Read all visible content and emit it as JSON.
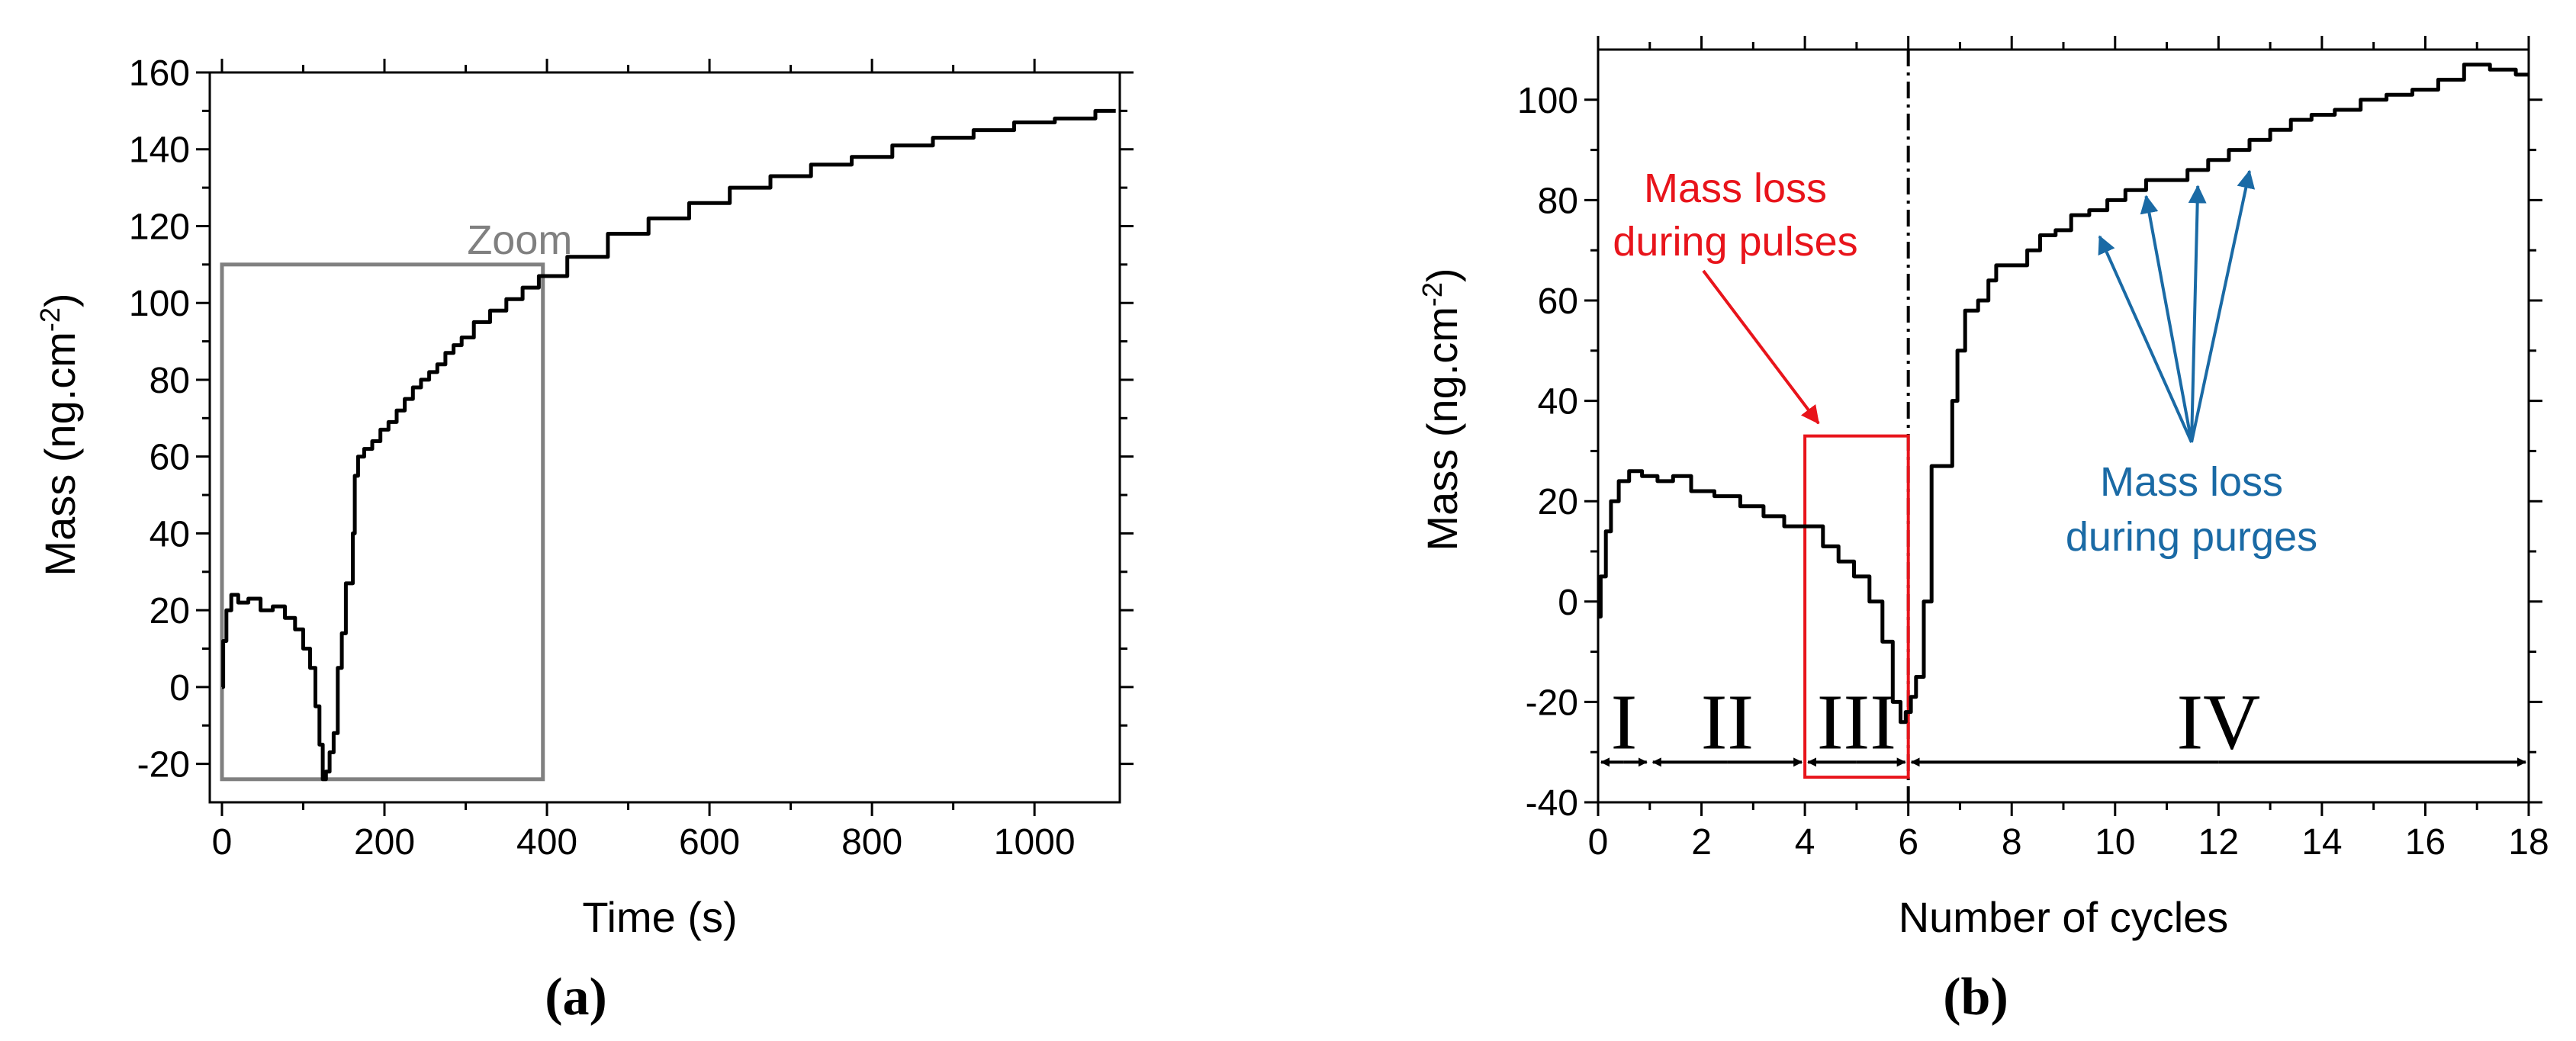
{
  "chart_data": [
    {
      "id": "a",
      "type": "line",
      "panel_label": "(a)",
      "xlabel": "Time (s)",
      "ylabel_main": "Mass (ng.cm",
      "ylabel_sup": "-2",
      "ylabel_close": ")",
      "xlim": [
        -15,
        1105
      ],
      "ylim": [
        -30,
        160
      ],
      "xticks": [
        0,
        200,
        400,
        600,
        800,
        1000
      ],
      "yticks": [
        -20,
        0,
        20,
        40,
        60,
        80,
        100,
        120,
        140,
        160
      ],
      "zoom_label": "Zoom",
      "zoom_box": {
        "x0": 0,
        "x1": 395,
        "y0": -24,
        "y1": 110
      },
      "series": [
        {
          "name": "mass",
          "points": [
            [
              0,
              0
            ],
            [
              3,
              12
            ],
            [
              8,
              20
            ],
            [
              15,
              24
            ],
            [
              25,
              22
            ],
            [
              40,
              23
            ],
            [
              55,
              20
            ],
            [
              70,
              21
            ],
            [
              85,
              18
            ],
            [
              95,
              15
            ],
            [
              105,
              10
            ],
            [
              112,
              5
            ],
            [
              118,
              -5
            ],
            [
              122,
              -15
            ],
            [
              126,
              -24
            ],
            [
              130,
              -22
            ],
            [
              135,
              -17
            ],
            [
              140,
              -12
            ],
            [
              145,
              5
            ],
            [
              150,
              14
            ],
            [
              155,
              27
            ],
            [
              160,
              27
            ],
            [
              162,
              40
            ],
            [
              165,
              55
            ],
            [
              170,
              60
            ],
            [
              180,
              62
            ],
            [
              190,
              64
            ],
            [
              200,
              67
            ],
            [
              210,
              69
            ],
            [
              220,
              72
            ],
            [
              230,
              75
            ],
            [
              240,
              78
            ],
            [
              250,
              80
            ],
            [
              260,
              82
            ],
            [
              270,
              84
            ],
            [
              280,
              87
            ],
            [
              290,
              89
            ],
            [
              300,
              91
            ],
            [
              320,
              95
            ],
            [
              340,
              98
            ],
            [
              360,
              101
            ],
            [
              380,
              104
            ],
            [
              400,
              107
            ],
            [
              450,
              112
            ],
            [
              500,
              118
            ],
            [
              550,
              122
            ],
            [
              600,
              126
            ],
            [
              650,
              130
            ],
            [
              700,
              133
            ],
            [
              750,
              136
            ],
            [
              800,
              138
            ],
            [
              850,
              141
            ],
            [
              900,
              143
            ],
            [
              950,
              145
            ],
            [
              1000,
              147
            ],
            [
              1050,
              148
            ],
            [
              1100,
              150
            ]
          ]
        }
      ]
    },
    {
      "id": "b",
      "type": "line",
      "panel_label": "(b)",
      "xlabel": "Number of cycles",
      "ylabel_main": "Mass (ng.cm",
      "ylabel_sup": "-2",
      "ylabel_close": ")",
      "xlim": [
        0,
        18
      ],
      "ylim": [
        -40,
        110
      ],
      "xticks": [
        0,
        2,
        4,
        6,
        8,
        10,
        12,
        14,
        16,
        18
      ],
      "yticks": [
        -40,
        -20,
        0,
        20,
        40,
        60,
        80,
        100
      ],
      "divider_x": 6,
      "phases": [
        {
          "label": "I",
          "from": 0,
          "to": 1
        },
        {
          "label": "II",
          "from": 1,
          "to": 4
        },
        {
          "label": "III",
          "from": 4,
          "to": 6
        },
        {
          "label": "IV",
          "from": 6,
          "to": 18
        }
      ],
      "annotation_pulses": {
        "line1": "Mass loss",
        "line2": "during pulses",
        "color": "#e8141b",
        "box": {
          "x0": 4,
          "x1": 6,
          "y0": -35,
          "y1": 33
        }
      },
      "annotation_purges": {
        "line1": "Mass loss",
        "line2": "during purges",
        "color": "#1a6aa5",
        "targets": [
          [
            9.7,
            74
          ],
          [
            10.6,
            82
          ],
          [
            11.6,
            84
          ],
          [
            12.6,
            87
          ]
        ]
      },
      "series": [
        {
          "name": "mass",
          "points": [
            [
              0,
              -3
            ],
            [
              0.1,
              5
            ],
            [
              0.2,
              14
            ],
            [
              0.3,
              20
            ],
            [
              0.5,
              24
            ],
            [
              0.7,
              26
            ],
            [
              1,
              25
            ],
            [
              1.3,
              24
            ],
            [
              1.6,
              25
            ],
            [
              2,
              22
            ],
            [
              2.5,
              21
            ],
            [
              3,
              19
            ],
            [
              3.4,
              17
            ],
            [
              3.8,
              15
            ],
            [
              4.2,
              15
            ],
            [
              4.5,
              11
            ],
            [
              4.8,
              8
            ],
            [
              5.1,
              5
            ],
            [
              5.4,
              0
            ],
            [
              5.6,
              -8
            ],
            [
              5.8,
              -20
            ],
            [
              5.9,
              -24
            ],
            [
              6,
              -22
            ],
            [
              6.1,
              -19
            ],
            [
              6.2,
              -15
            ],
            [
              6.4,
              0
            ],
            [
              6.5,
              27
            ],
            [
              6.8,
              27
            ],
            [
              6.9,
              40
            ],
            [
              7,
              50
            ],
            [
              7.2,
              58
            ],
            [
              7.5,
              60
            ],
            [
              7.6,
              64
            ],
            [
              7.8,
              67
            ],
            [
              8.2,
              67
            ],
            [
              8.4,
              70
            ],
            [
              8.7,
              73
            ],
            [
              9,
              74
            ],
            [
              9.3,
              77
            ],
            [
              9.7,
              78
            ],
            [
              10,
              80
            ],
            [
              10.4,
              82
            ],
            [
              10.8,
              84
            ],
            [
              11.2,
              84
            ],
            [
              11.6,
              86
            ],
            [
              12,
              88
            ],
            [
              12.4,
              90
            ],
            [
              12.8,
              92
            ],
            [
              13.2,
              94
            ],
            [
              13.6,
              96
            ],
            [
              14,
              97
            ],
            [
              14.5,
              98
            ],
            [
              15,
              100
            ],
            [
              15.5,
              101
            ],
            [
              16,
              102
            ],
            [
              16.5,
              104
            ],
            [
              17,
              107
            ],
            [
              17.5,
              106
            ],
            [
              18,
              105
            ]
          ]
        }
      ]
    }
  ]
}
